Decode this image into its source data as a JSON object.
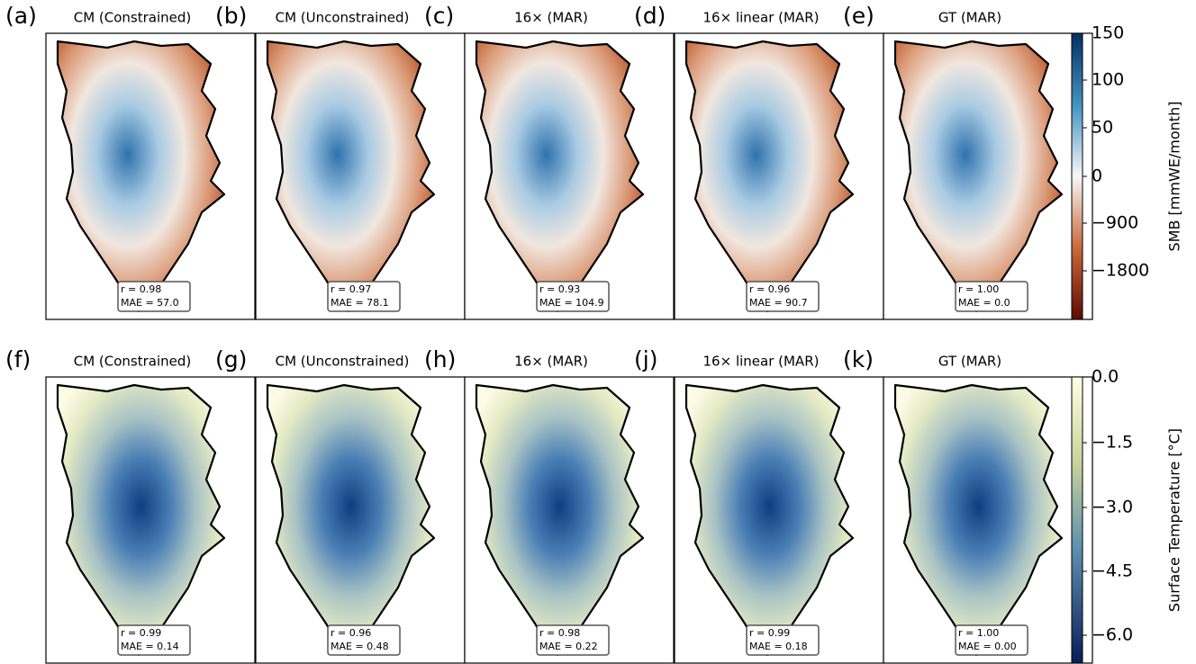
{
  "rows": [
    {
      "panels": [
        {
          "label": "(a)",
          "title": "CM (Constrained)",
          "r": "r = 0.98",
          "mae": "MAE = 57.0"
        },
        {
          "label": "(b)",
          "title": "CM (Unconstrained)",
          "r": "r = 0.97",
          "mae": "MAE = 78.1"
        },
        {
          "label": "(c)",
          "title": "16× (MAR)",
          "r": "r = 0.93",
          "mae": "MAE = 104.9"
        },
        {
          "label": "(d)",
          "title": "16× linear (MAR)",
          "r": "r = 0.96",
          "mae": "MAE = 90.7"
        },
        {
          "label": "(e)",
          "title": "GT (MAR)",
          "r": "r = 1.00",
          "mae": "MAE = 0.0"
        }
      ],
      "colorbar": {
        "label": "SMB [mmWE/month]",
        "ticks": [
          "150",
          "100",
          "50",
          "0",
          "−900",
          "−1800"
        ]
      }
    },
    {
      "panels": [
        {
          "label": "(f)",
          "title": "CM (Constrained)",
          "r": "r = 0.99",
          "mae": "MAE = 0.14"
        },
        {
          "label": "(g)",
          "title": "CM (Unconstrained)",
          "r": "r = 0.96",
          "mae": "MAE = 0.48"
        },
        {
          "label": "(h)",
          "title": "16× (MAR)",
          "r": "r = 0.98",
          "mae": "MAE = 0.22"
        },
        {
          "label": "(j)",
          "title": "16× linear (MAR)",
          "r": "r = 0.99",
          "mae": "MAE = 0.18"
        },
        {
          "label": "(k)",
          "title": "GT (MAR)",
          "r": "r = 1.00",
          "mae": "MAE = 0.00"
        }
      ],
      "colorbar": {
        "label": "Surface Temperature [°C]",
        "ticks": [
          "0.0",
          "−1.5",
          "−3.0",
          "−4.5",
          "−6.0"
        ]
      }
    }
  ]
}
